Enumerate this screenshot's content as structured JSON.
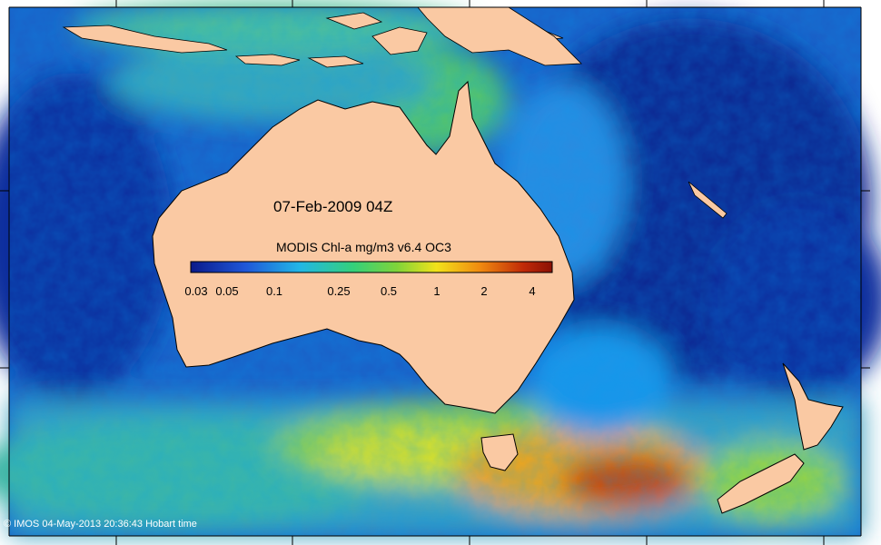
{
  "map": {
    "date_label": "07-Feb-2009 04Z",
    "product_label": "MODIS Chl-a mg/m3 v6.4 OC3",
    "credit": "© IMOS 04-May-2013 20:36:43 Hobart time",
    "colorbar": {
      "scale": "log",
      "range": [
        0.03,
        5
      ],
      "ticks": [
        "0.03",
        "0.05",
        "0.1",
        "0.25",
        "0.5",
        "1",
        "2",
        "4"
      ],
      "colors": [
        "#0a1a8a",
        "#1f56d8",
        "#22b6e6",
        "#34d07a",
        "#7fd43a",
        "#f2e21a",
        "#f08a10",
        "#c02a08",
        "#8a1006"
      ]
    },
    "land_color": "#fac9a3",
    "low_chl_color": "#0b2aa8",
    "high_chl_color": "#c22d0a"
  }
}
